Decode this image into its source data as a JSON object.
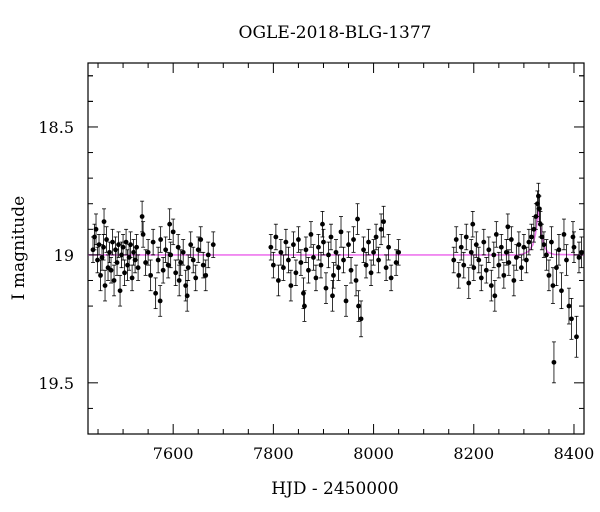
{
  "chart_data": {
    "type": "scatter",
    "title": "OGLE-2018-BLG-1377",
    "xlabel": "HJD - 2450000",
    "ylabel": "I magnitude",
    "xlim": [
      7430,
      8420
    ],
    "ylim": [
      19.7,
      18.25
    ],
    "y_inverted": true,
    "x_ticks_major": [
      7600,
      7800,
      8000,
      8200,
      8400
    ],
    "x_tick_labels": [
      "7600",
      "7800",
      "8000",
      "8200",
      "8400"
    ],
    "y_ticks_major": [
      18.5,
      19,
      19.5
    ],
    "y_tick_labels": [
      "18.5",
      "19",
      "19.5"
    ],
    "grid": false,
    "colors": {
      "points": "#000000",
      "model": "#ee77ee"
    },
    "model": {
      "baseline": 19.0,
      "peak_x": 8329,
      "peak_mag": 18.82,
      "points": [
        [
          7430,
          19.0
        ],
        [
          8290,
          19.0
        ],
        [
          8300,
          18.995
        ],
        [
          8310,
          18.985
        ],
        [
          8318,
          18.96
        ],
        [
          8323,
          18.92
        ],
        [
          8327,
          18.86
        ],
        [
          8329,
          18.82
        ],
        [
          8331,
          18.86
        ],
        [
          8335,
          18.92
        ],
        [
          8340,
          18.965
        ],
        [
          8348,
          18.99
        ],
        [
          8360,
          18.998
        ],
        [
          8420,
          19.0
        ]
      ]
    },
    "series": [
      {
        "values": [
          [
            7440,
            18.98,
            0.05
          ],
          [
            7443,
            18.93,
            0.05
          ],
          [
            7446,
            18.9,
            0.06
          ],
          [
            7449,
            19.02,
            0.05
          ],
          [
            7452,
            18.96,
            0.04
          ],
          [
            7455,
            19.08,
            0.06
          ],
          [
            7458,
            19.01,
            0.05
          ],
          [
            7461,
            18.97,
            0.05
          ],
          [
            7464,
            19.12,
            0.06
          ],
          [
            7467,
            18.94,
            0.05
          ],
          [
            7470,
            19.05,
            0.05
          ],
          [
            7473,
            18.99,
            0.04
          ],
          [
            7476,
            19.06,
            0.05
          ],
          [
            7479,
            18.95,
            0.05
          ],
          [
            7482,
            19.1,
            0.06
          ],
          [
            7485,
            18.98,
            0.05
          ],
          [
            7488,
            19.03,
            0.05
          ],
          [
            7491,
            18.96,
            0.05
          ],
          [
            7494,
            19.14,
            0.06
          ],
          [
            7497,
            19.0,
            0.05
          ],
          [
            7500,
            18.97,
            0.05
          ],
          [
            7503,
            19.07,
            0.05
          ],
          [
            7506,
            18.95,
            0.05
          ],
          [
            7509,
            19.04,
            0.06
          ],
          [
            7512,
            19.01,
            0.05
          ],
          [
            7515,
            18.96,
            0.05
          ],
          [
            7518,
            19.09,
            0.05
          ],
          [
            7521,
            18.99,
            0.05
          ],
          [
            7524,
            19.02,
            0.05
          ],
          [
            7527,
            18.97,
            0.05
          ],
          [
            7530,
            19.05,
            0.05
          ],
          [
            7540,
            18.92,
            0.05
          ],
          [
            7545,
            19.03,
            0.05
          ],
          [
            7550,
            18.99,
            0.05
          ],
          [
            7555,
            19.08,
            0.06
          ],
          [
            7560,
            18.95,
            0.05
          ],
          [
            7565,
            19.15,
            0.06
          ],
          [
            7570,
            19.02,
            0.05
          ],
          [
            7575,
            18.94,
            0.05
          ],
          [
            7580,
            19.06,
            0.05
          ],
          [
            7585,
            18.98,
            0.05
          ],
          [
            7590,
            19.04,
            0.05
          ],
          [
            7595,
            19.0,
            0.05
          ],
          [
            7600,
            18.91,
            0.05
          ],
          [
            7605,
            19.07,
            0.05
          ],
          [
            7610,
            18.97,
            0.05
          ],
          [
            7615,
            19.03,
            0.05
          ],
          [
            7620,
            18.99,
            0.05
          ],
          [
            7625,
            19.12,
            0.06
          ],
          [
            7630,
            19.05,
            0.05
          ],
          [
            7635,
            18.96,
            0.05
          ],
          [
            7640,
            19.02,
            0.05
          ],
          [
            7645,
            19.09,
            0.05
          ],
          [
            7650,
            18.98,
            0.05
          ],
          [
            7655,
            18.94,
            0.05
          ],
          [
            7660,
            19.04,
            0.05
          ],
          [
            7665,
            19.08,
            0.06
          ],
          [
            7670,
            19.0,
            0.05
          ],
          [
            7680,
            18.96,
            0.05
          ],
          [
            7574,
            19.18,
            0.06
          ],
          [
            7612,
            19.1,
            0.06
          ],
          [
            7628,
            19.16,
            0.06
          ],
          [
            7462,
            18.87,
            0.05
          ],
          [
            7538,
            18.85,
            0.06
          ],
          [
            7593,
            18.88,
            0.06
          ],
          [
            7795,
            18.97,
            0.05
          ],
          [
            7800,
            19.04,
            0.05
          ],
          [
            7805,
            18.93,
            0.05
          ],
          [
            7810,
            19.1,
            0.06
          ],
          [
            7815,
            18.99,
            0.05
          ],
          [
            7820,
            19.05,
            0.05
          ],
          [
            7825,
            18.95,
            0.05
          ],
          [
            7830,
            19.02,
            0.05
          ],
          [
            7835,
            19.12,
            0.06
          ],
          [
            7840,
            18.96,
            0.05
          ],
          [
            7845,
            19.07,
            0.05
          ],
          [
            7850,
            18.94,
            0.05
          ],
          [
            7855,
            19.03,
            0.05
          ],
          [
            7860,
            19.15,
            0.06
          ],
          [
            7865,
            18.98,
            0.05
          ],
          [
            7870,
            19.06,
            0.05
          ],
          [
            7875,
            18.92,
            0.05
          ],
          [
            7880,
            19.01,
            0.05
          ],
          [
            7885,
            19.09,
            0.05
          ],
          [
            7890,
            18.97,
            0.05
          ],
          [
            7895,
            19.04,
            0.05
          ],
          [
            7900,
            18.95,
            0.05
          ],
          [
            7905,
            19.13,
            0.06
          ],
          [
            7910,
            19.0,
            0.05
          ],
          [
            7915,
            18.93,
            0.05
          ],
          [
            7920,
            19.08,
            0.05
          ],
          [
            7925,
            18.99,
            0.05
          ],
          [
            7930,
            19.05,
            0.05
          ],
          [
            7935,
            18.91,
            0.06
          ],
          [
            7940,
            19.02,
            0.05
          ],
          [
            7945,
            19.18,
            0.06
          ],
          [
            7950,
            18.96,
            0.05
          ],
          [
            7955,
            19.06,
            0.05
          ],
          [
            7960,
            18.94,
            0.05
          ],
          [
            7965,
            19.1,
            0.06
          ],
          [
            7970,
            19.2,
            0.06
          ],
          [
            7975,
            19.25,
            0.07
          ],
          [
            7980,
            18.98,
            0.05
          ],
          [
            7985,
            19.04,
            0.05
          ],
          [
            7990,
            18.95,
            0.05
          ],
          [
            7995,
            19.07,
            0.05
          ],
          [
            8000,
            18.99,
            0.05
          ],
          [
            8005,
            18.93,
            0.05
          ],
          [
            8010,
            19.02,
            0.05
          ],
          [
            8015,
            18.9,
            0.06
          ],
          [
            8020,
            18.87,
            0.06
          ],
          [
            8025,
            19.05,
            0.05
          ],
          [
            8030,
            18.97,
            0.05
          ],
          [
            8035,
            19.09,
            0.05
          ],
          [
            8050,
            18.99,
            0.05
          ],
          [
            7862,
            19.2,
            0.06
          ],
          [
            7918,
            19.16,
            0.06
          ],
          [
            7898,
            18.88,
            0.05
          ],
          [
            7968,
            18.86,
            0.06
          ],
          [
            8045,
            19.03,
            0.05
          ],
          [
            8160,
            19.02,
            0.05
          ],
          [
            8165,
            18.94,
            0.05
          ],
          [
            8170,
            19.08,
            0.05
          ],
          [
            8175,
            18.97,
            0.05
          ],
          [
            8180,
            19.04,
            0.05
          ],
          [
            8185,
            18.93,
            0.05
          ],
          [
            8190,
            19.11,
            0.06
          ],
          [
            8195,
            18.99,
            0.05
          ],
          [
            8200,
            19.05,
            0.05
          ],
          [
            8205,
            18.96,
            0.05
          ],
          [
            8210,
            19.02,
            0.05
          ],
          [
            8215,
            19.09,
            0.05
          ],
          [
            8220,
            18.95,
            0.05
          ],
          [
            8225,
            19.06,
            0.05
          ],
          [
            8230,
            18.98,
            0.05
          ],
          [
            8235,
            19.12,
            0.06
          ],
          [
            8240,
            19.0,
            0.05
          ],
          [
            8245,
            18.92,
            0.05
          ],
          [
            8250,
            19.04,
            0.05
          ],
          [
            8255,
            18.97,
            0.05
          ],
          [
            8260,
            19.08,
            0.05
          ],
          [
            8265,
            18.99,
            0.05
          ],
          [
            8270,
            19.03,
            0.05
          ],
          [
            8275,
            18.94,
            0.05
          ],
          [
            8280,
            19.1,
            0.06
          ],
          [
            8285,
            19.01,
            0.05
          ],
          [
            8290,
            18.96,
            0.05
          ],
          [
            8295,
            19.05,
            0.05
          ],
          [
            8300,
            18.97,
            0.05
          ],
          [
            8305,
            19.02,
            0.05
          ],
          [
            8310,
            18.95,
            0.05
          ],
          [
            8315,
            18.93,
            0.05
          ],
          [
            8320,
            18.9,
            0.05
          ],
          [
            8324,
            18.85,
            0.05
          ],
          [
            8327,
            18.8,
            0.05
          ],
          [
            8329,
            18.77,
            0.05
          ],
          [
            8331,
            18.82,
            0.05
          ],
          [
            8333,
            18.88,
            0.05
          ],
          [
            8336,
            18.93,
            0.05
          ],
          [
            8340,
            18.96,
            0.05
          ],
          [
            8345,
            19.0,
            0.06
          ],
          [
            8350,
            19.08,
            0.06
          ],
          [
            8355,
            18.95,
            0.06
          ],
          [
            8360,
            19.42,
            0.08
          ],
          [
            8365,
            19.05,
            0.07
          ],
          [
            8370,
            18.98,
            0.06
          ],
          [
            8375,
            19.14,
            0.07
          ],
          [
            8380,
            18.92,
            0.06
          ],
          [
            8385,
            19.02,
            0.06
          ],
          [
            8390,
            19.2,
            0.07
          ],
          [
            8395,
            19.25,
            0.08
          ],
          [
            8400,
            18.97,
            0.06
          ],
          [
            8405,
            19.32,
            0.08
          ],
          [
            8410,
            19.01,
            0.06
          ],
          [
            8415,
            18.99,
            0.06
          ],
          [
            8242,
            19.16,
            0.06
          ],
          [
            8268,
            18.89,
            0.05
          ],
          [
            8198,
            18.88,
            0.05
          ],
          [
            8358,
            19.12,
            0.07
          ],
          [
            8398,
            18.93,
            0.06
          ]
        ]
      }
    ]
  }
}
